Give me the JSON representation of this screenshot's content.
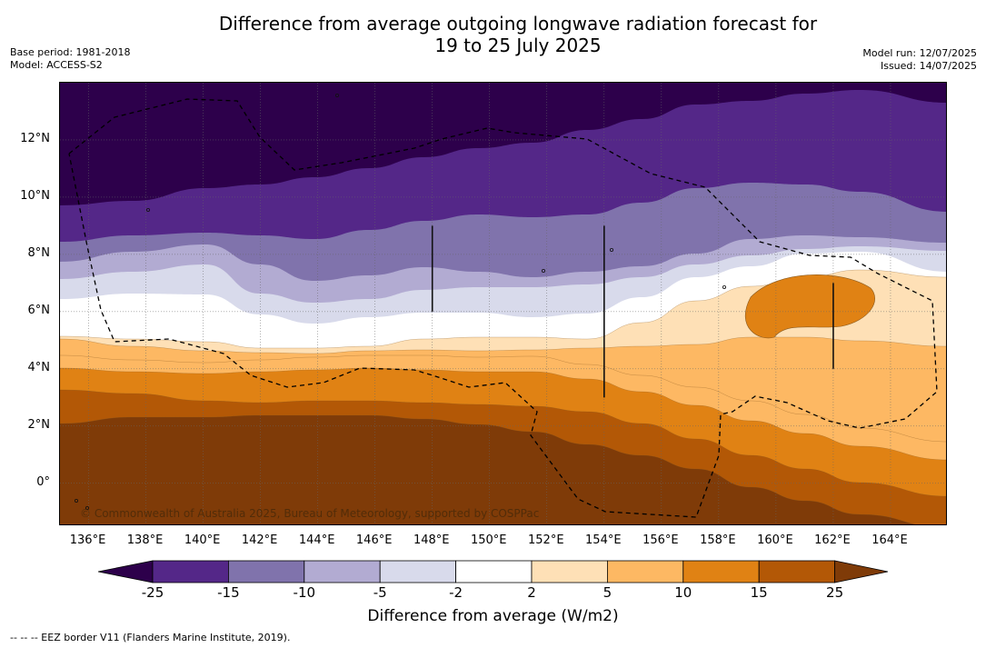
{
  "title": {
    "line1": "Difference from average outgoing longwave radiation forecast for",
    "line2": "19 to 25 July 2025"
  },
  "meta": {
    "base_period": "Base period: 1981-2018",
    "model": "Model: ACCESS-S2",
    "model_run": "Model run: 12/07/2025",
    "issued": "Issued: 14/07/2025"
  },
  "map": {
    "lat_range": [
      -1.5,
      14
    ],
    "lon_range": [
      135,
      166
    ],
    "lat_ticks": [
      "12°N",
      "10°N",
      "8°N",
      "6°N",
      "4°N",
      "2°N",
      "0°"
    ],
    "lon_ticks": [
      "136°E",
      "138°E",
      "140°E",
      "142°E",
      "144°E",
      "146°E",
      "148°E",
      "150°E",
      "152°E",
      "154°E",
      "156°E",
      "158°E",
      "160°E",
      "162°E",
      "164°E"
    ],
    "gridlines": true,
    "copyright": "© Commonwealth of Australia 2025, Bureau of Meteorology, supported by COSPPac"
  },
  "legend": {
    "levels": [
      "-25",
      "-15",
      "-10",
      "-5",
      "-2",
      "2",
      "5",
      "10",
      "15",
      "25"
    ],
    "colors": [
      "#2d004b",
      "#542788",
      "#8073ac",
      "#b2abd2",
      "#d8daeb",
      "#ffffff",
      "#fee0b6",
      "#fdb863",
      "#e08214",
      "#b35806",
      "#7f3b08"
    ],
    "title": "Difference from average (W/m2)"
  },
  "footnote": "--  --  -- EEZ border V11 (Flanders Marine Institute, 2019)."
}
